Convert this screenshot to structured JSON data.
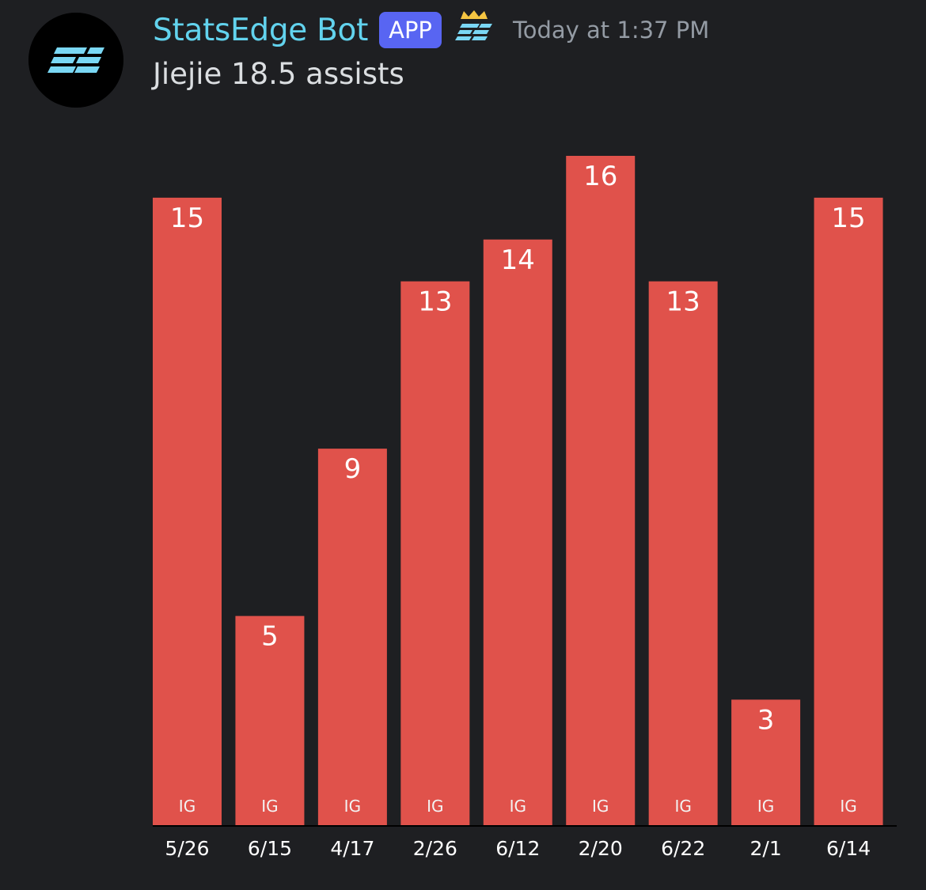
{
  "message": {
    "author": "StatsEdge Bot",
    "badge": "APP",
    "timestamp": "Today at 1:37 PM",
    "text": "Jiejie 18.5 assists",
    "avatar_icon": "statsedge-logo-icon",
    "role_icon": "statsedge-crown-icon"
  },
  "colors": {
    "username": "#62d3ee",
    "badge": "#5865f2",
    "bar": "#e0524b",
    "background": "#1e1f22"
  },
  "chart_data": {
    "type": "bar",
    "categories": [
      "5/26",
      "6/15",
      "4/17",
      "2/26",
      "6/12",
      "2/20",
      "6/22",
      "2/1",
      "6/14"
    ],
    "series": [
      {
        "values": [
          15,
          5,
          9,
          13,
          14,
          16,
          13,
          3,
          15
        ],
        "bar_labels": [
          "IG",
          "IG",
          "IG",
          "IG",
          "IG",
          "IG",
          "IG",
          "IG",
          "IG"
        ]
      }
    ],
    "ylim": [
      0,
      16
    ],
    "grid": false
  }
}
